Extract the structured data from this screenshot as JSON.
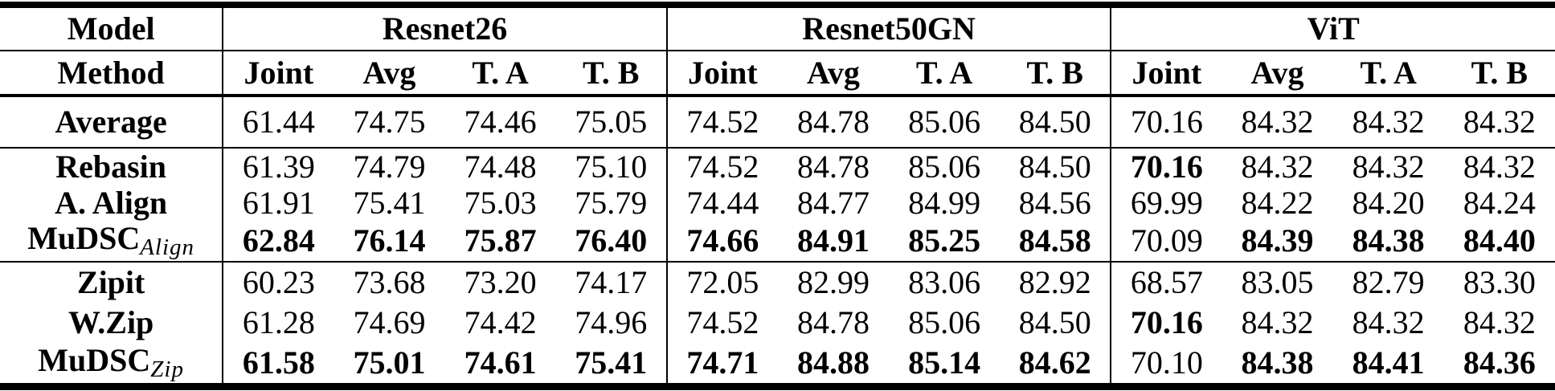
{
  "table": {
    "corner_row1": "Model",
    "corner_row2": "Method",
    "model_groups": [
      {
        "label": "Resnet26"
      },
      {
        "label": "Resnet50GN"
      },
      {
        "label": "ViT"
      }
    ],
    "metric_columns": [
      "Joint",
      "Avg",
      "T. A",
      "T. B"
    ],
    "row_groups": [
      {
        "rows": [
          {
            "method": "Average",
            "subscript": "",
            "values": [
              "61.44",
              "74.75",
              "74.46",
              "75.05",
              "74.52",
              "84.78",
              "85.06",
              "84.50",
              "70.16",
              "84.32",
              "84.32",
              "84.32"
            ],
            "bold": [
              0,
              0,
              0,
              0,
              0,
              0,
              0,
              0,
              0,
              0,
              0,
              0
            ]
          }
        ]
      },
      {
        "rows": [
          {
            "method": "Rebasin",
            "subscript": "",
            "values": [
              "61.39",
              "74.79",
              "74.48",
              "75.10",
              "74.52",
              "84.78",
              "85.06",
              "84.50",
              "70.16",
              "84.32",
              "84.32",
              "84.32"
            ],
            "bold": [
              0,
              0,
              0,
              0,
              0,
              0,
              0,
              0,
              1,
              0,
              0,
              0
            ]
          },
          {
            "method": "A. Align",
            "subscript": "",
            "values": [
              "61.91",
              "75.41",
              "75.03",
              "75.79",
              "74.44",
              "84.77",
              "84.99",
              "84.56",
              "69.99",
              "84.22",
              "84.20",
              "84.24"
            ],
            "bold": [
              0,
              0,
              0,
              0,
              0,
              0,
              0,
              0,
              0,
              0,
              0,
              0
            ]
          },
          {
            "method": "MuDSC",
            "subscript": "Align",
            "values": [
              "62.84",
              "76.14",
              "75.87",
              "76.40",
              "74.66",
              "84.91",
              "85.25",
              "84.58",
              "70.09",
              "84.39",
              "84.38",
              "84.40"
            ],
            "bold": [
              1,
              1,
              1,
              1,
              1,
              1,
              1,
              1,
              0,
              1,
              1,
              1
            ]
          }
        ]
      },
      {
        "rows": [
          {
            "method": "Zipit",
            "subscript": "",
            "values": [
              "60.23",
              "73.68",
              "73.20",
              "74.17",
              "72.05",
              "82.99",
              "83.06",
              "82.92",
              "68.57",
              "83.05",
              "82.79",
              "83.30"
            ],
            "bold": [
              0,
              0,
              0,
              0,
              0,
              0,
              0,
              0,
              0,
              0,
              0,
              0
            ]
          },
          {
            "method": "W.Zip",
            "subscript": "",
            "values": [
              "61.28",
              "74.69",
              "74.42",
              "74.96",
              "74.52",
              "84.78",
              "85.06",
              "84.50",
              "70.16",
              "84.32",
              "84.32",
              "84.32"
            ],
            "bold": [
              0,
              0,
              0,
              0,
              0,
              0,
              0,
              0,
              1,
              0,
              0,
              0
            ]
          },
          {
            "method": "MuDSC",
            "subscript": "Zip",
            "values": [
              "61.58",
              "75.01",
              "74.61",
              "75.41",
              "74.71",
              "84.88",
              "85.14",
              "84.62",
              "70.10",
              "84.38",
              "84.41",
              "84.36"
            ],
            "bold": [
              1,
              1,
              1,
              1,
              1,
              1,
              1,
              1,
              0,
              1,
              1,
              1
            ]
          }
        ]
      }
    ]
  }
}
